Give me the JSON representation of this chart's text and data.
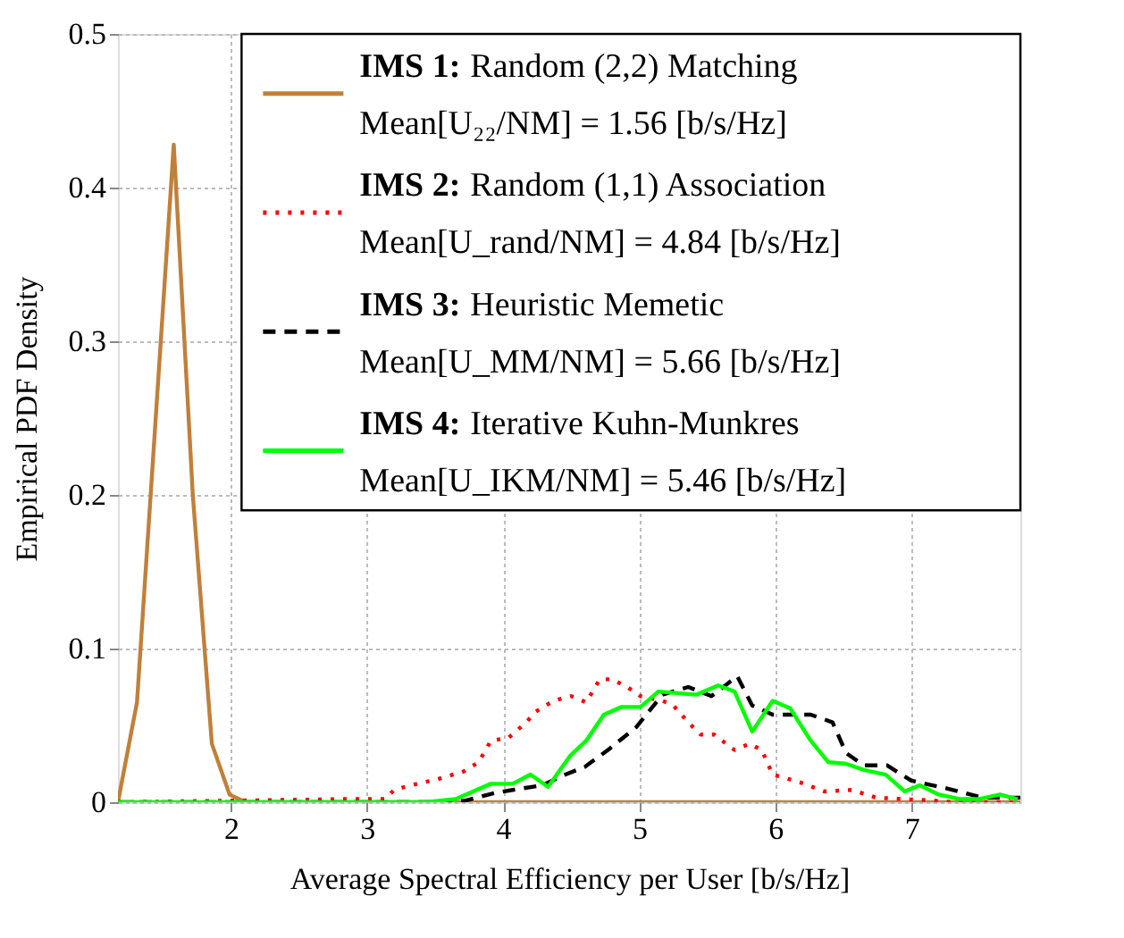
{
  "chart_data": {
    "type": "line",
    "xlabel": "Average Spectral Efficiency per User [b/s/Hz]",
    "ylabel": "Empirical PDF Density",
    "xlim": [
      1.17,
      7.8
    ],
    "ylim": [
      0,
      0.5
    ],
    "xticks": [
      2,
      3,
      4,
      5,
      6,
      7
    ],
    "yticks": [
      0,
      0.1,
      0.2,
      0.3,
      0.4,
      0.5
    ],
    "grid": true,
    "legend": "top right",
    "marker": "none",
    "series": [
      {
        "name": "IMS 1: Random (2,2) Matching\nMean[U₂₂/NM] = 1.56 [b/s/Hz]",
        "color": "#c0803a",
        "line_style": "solid",
        "x": [
          1.17,
          1.31,
          1.58,
          1.72,
          1.86,
          1.99,
          2.11,
          3,
          4,
          5,
          6,
          7,
          7.8
        ],
        "values": [
          0,
          0.065,
          0.428,
          0.2,
          0.038,
          0.005,
          0,
          0,
          0,
          0,
          0,
          0,
          0
        ]
      },
      {
        "name": "IMS 2: Random (1,1) Association\nMean[U_rand/NM] = 4.84 [b/s/Hz]",
        "color": "#ff0000",
        "line_style": "dotted",
        "x": [
          1.17,
          2.83,
          3.13,
          3.2,
          3.32,
          3.52,
          3.71,
          3.82,
          3.91,
          4.04,
          4.17,
          4.24,
          4.37,
          4.5,
          4.61,
          4.71,
          4.8,
          4.91,
          5.01,
          5.17,
          5.25,
          5.36,
          5.45,
          5.55,
          5.7,
          5.81,
          5.9,
          5.98,
          6.1,
          6.18,
          6.36,
          6.56,
          6.74,
          6.95,
          7.17,
          7.3,
          7.8
        ],
        "values": [
          0,
          0.002,
          0.002,
          0.008,
          0.011,
          0.015,
          0.02,
          0.026,
          0.04,
          0.042,
          0.052,
          0.059,
          0.066,
          0.069,
          0.065,
          0.08,
          0.08,
          0.075,
          0.069,
          0.066,
          0.063,
          0.052,
          0.044,
          0.044,
          0.034,
          0.038,
          0.034,
          0.018,
          0.015,
          0.013,
          0.007,
          0.008,
          0.003,
          0.002,
          0.001,
          0,
          0
        ]
      },
      {
        "name": "IMS 3: Heuristic Memetic\nMean[U_MM/NM] = 5.66 [b/s/Hz]",
        "color": "#000000",
        "line_style": "dashed",
        "x": [
          1.17,
          3.5,
          3.72,
          3.94,
          4.07,
          4.29,
          4.43,
          4.6,
          4.77,
          4.98,
          5.17,
          5.36,
          5.53,
          5.72,
          5.83,
          5.98,
          6.26,
          6.42,
          6.52,
          6.65,
          6.82,
          7.0,
          7.26,
          7.52,
          7.73,
          7.8
        ],
        "values": [
          0,
          0,
          0.001,
          0.006,
          0.008,
          0.011,
          0.017,
          0.023,
          0.034,
          0.049,
          0.07,
          0.075,
          0.069,
          0.082,
          0.063,
          0.057,
          0.057,
          0.052,
          0.032,
          0.024,
          0.024,
          0.014,
          0.009,
          0.003,
          0.003,
          0.003
        ]
      },
      {
        "name": "IMS 4: Iterative Kuhn-Munkres\nMean[U_IKM/NM] = 5.46 [b/s/Hz]",
        "color": "#00ff00",
        "line_style": "solid",
        "x": [
          1.17,
          3.43,
          3.65,
          3.91,
          4.07,
          4.2,
          4.33,
          4.49,
          4.61,
          4.74,
          4.87,
          5.01,
          5.14,
          5.42,
          5.58,
          5.7,
          5.83,
          5.98,
          6.11,
          6.26,
          6.39,
          6.52,
          6.65,
          6.81,
          6.95,
          7.06,
          7.2,
          7.36,
          7.49,
          7.65,
          7.78
        ],
        "values": [
          0,
          0,
          0.002,
          0.012,
          0.012,
          0.018,
          0.01,
          0.03,
          0.04,
          0.057,
          0.062,
          0.062,
          0.072,
          0.07,
          0.076,
          0.072,
          0.046,
          0.066,
          0.061,
          0.04,
          0.026,
          0.025,
          0.021,
          0.018,
          0.007,
          0.011,
          0.005,
          0.002,
          0.002,
          0.005,
          0.002
        ]
      }
    ]
  }
}
